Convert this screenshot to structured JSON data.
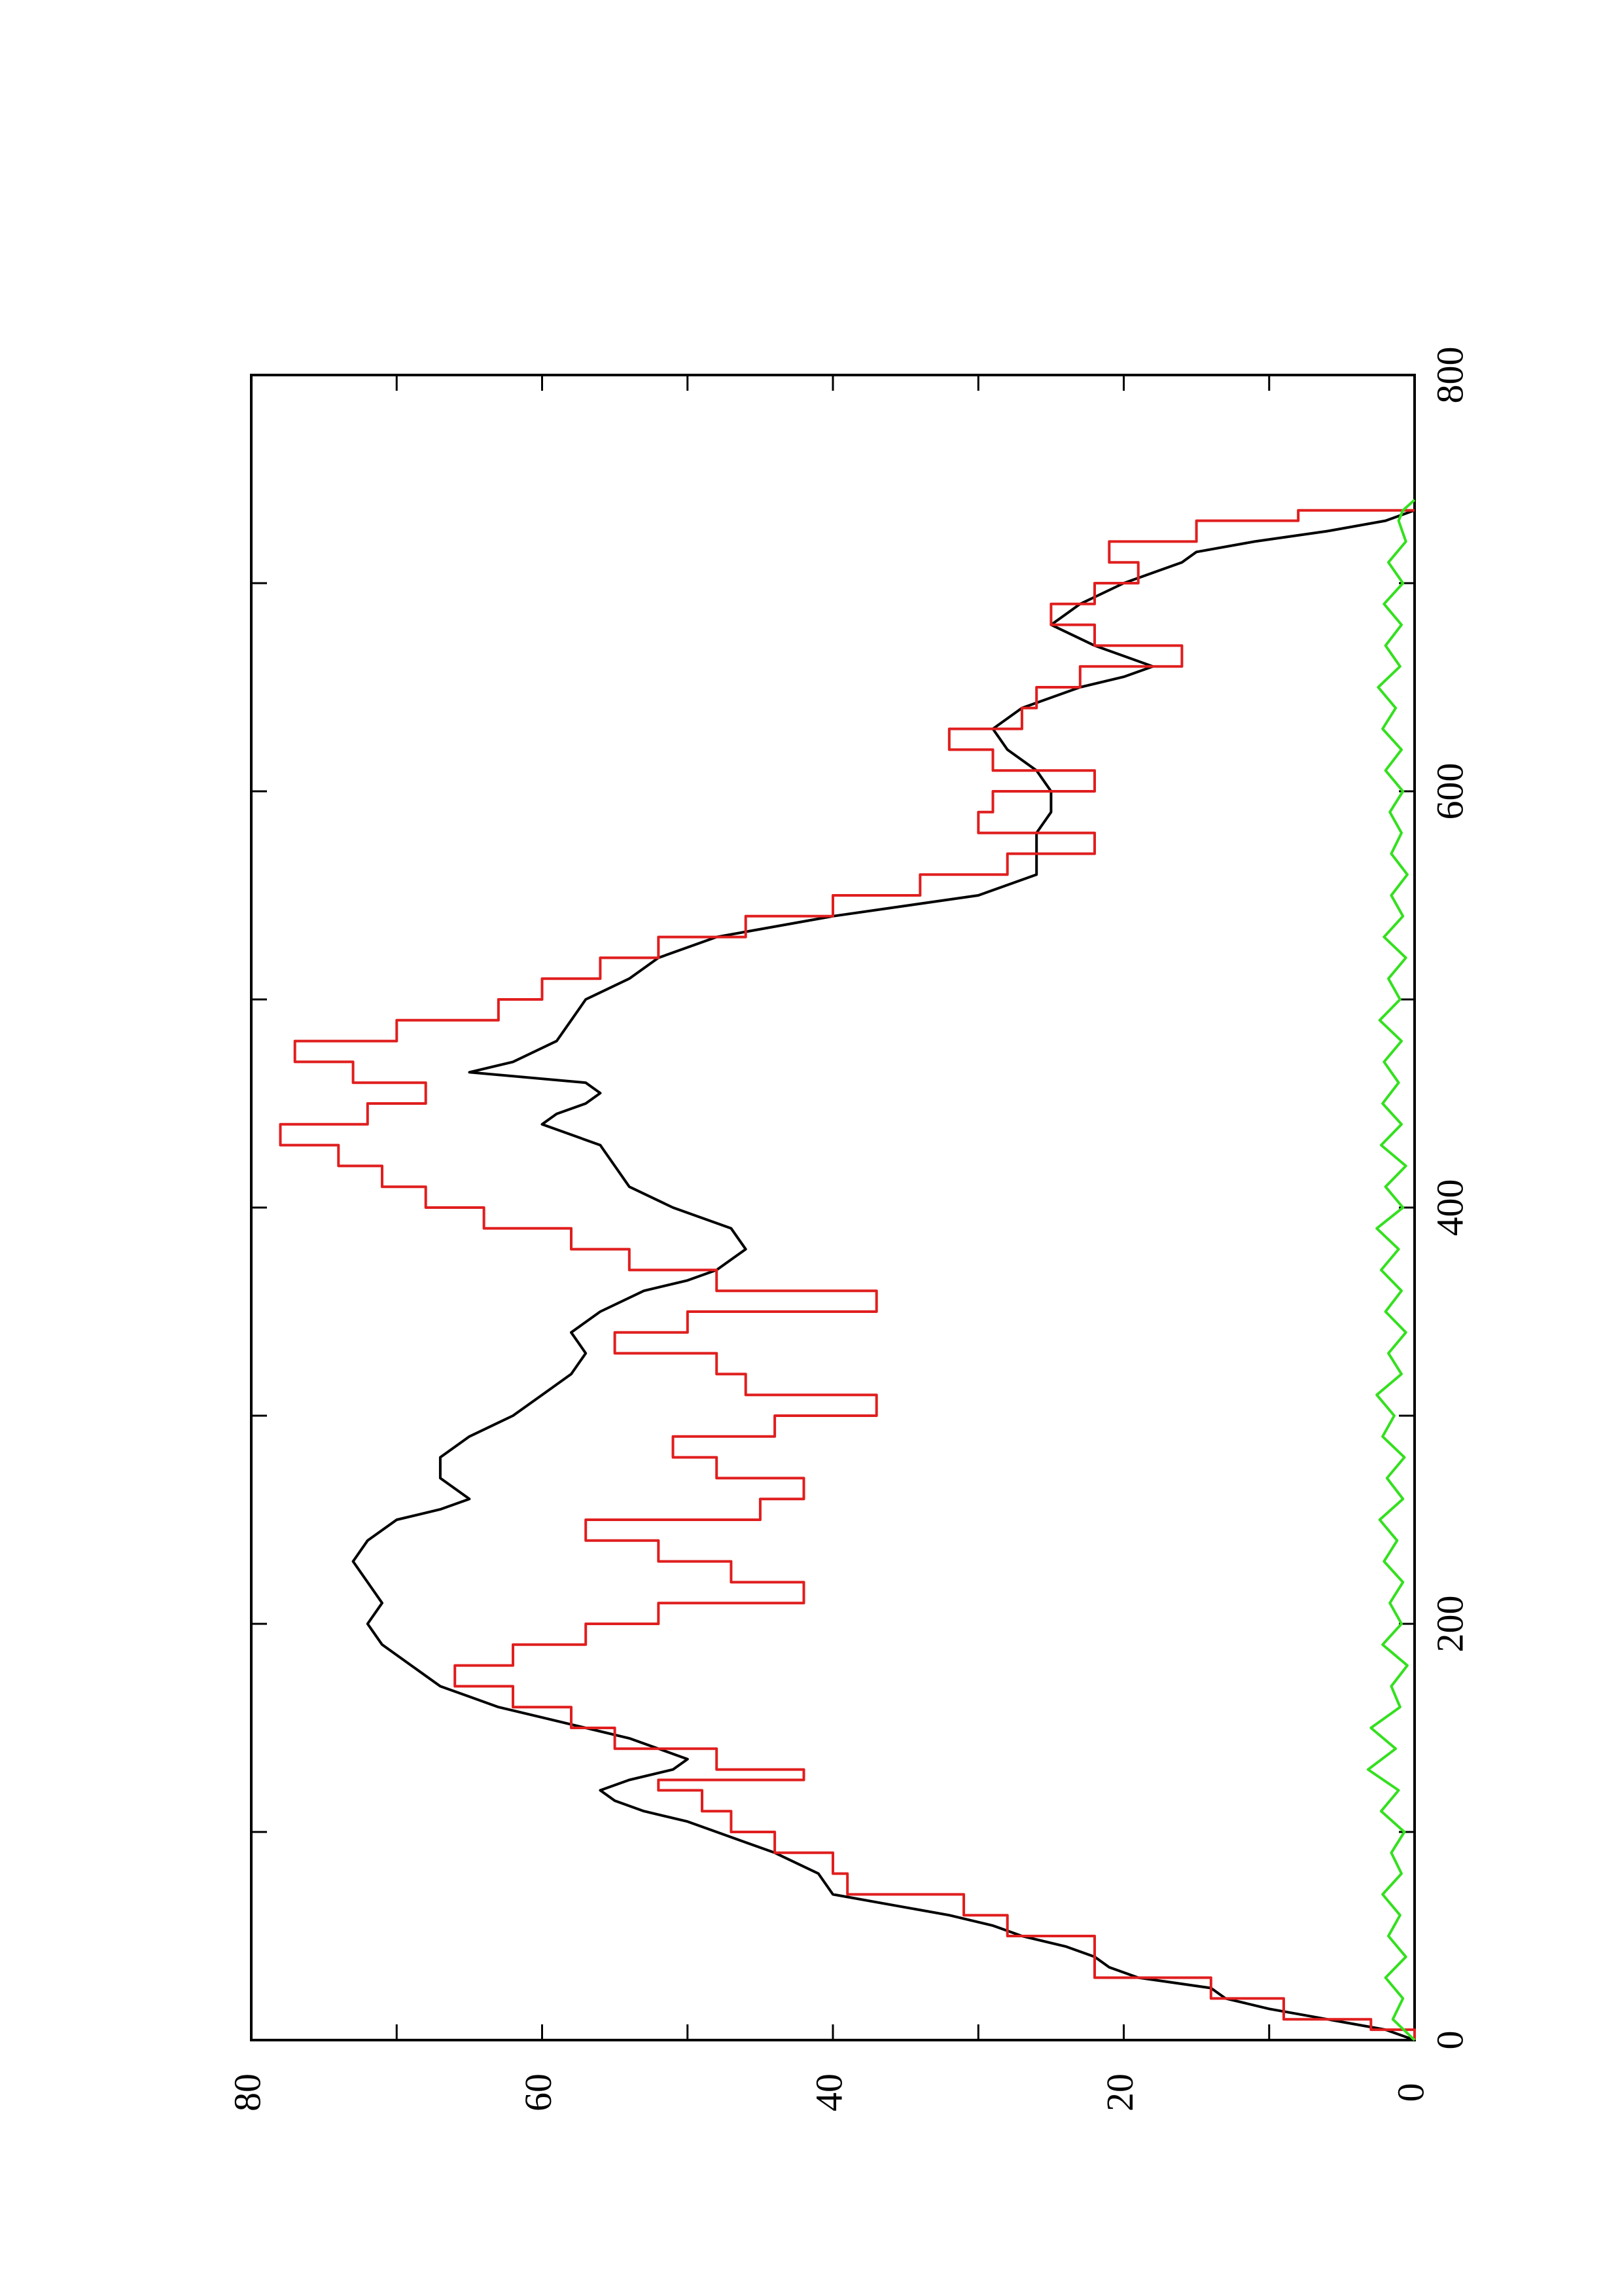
{
  "chart_data": {
    "type": "line",
    "orientation": "rotated-90-ccw",
    "title": "",
    "xlabel": "",
    "ylabel": "",
    "xlim": [
      0,
      800
    ],
    "ylim": [
      0,
      80
    ],
    "x_ticks": [
      "0",
      "200",
      "400",
      "600",
      "800"
    ],
    "y_ticks": [
      "0",
      "20",
      "40",
      "60",
      "80"
    ],
    "grid": false,
    "legend": "none",
    "series": [
      {
        "color": "#000000",
        "style": "line",
        "points": [
          [
            0,
            0
          ],
          [
            5,
            2
          ],
          [
            10,
            6
          ],
          [
            15,
            10
          ],
          [
            20,
            13
          ],
          [
            25,
            14
          ],
          [
            30,
            19
          ],
          [
            35,
            21
          ],
          [
            40,
            22
          ],
          [
            45,
            24
          ],
          [
            50,
            27
          ],
          [
            55,
            29
          ],
          [
            60,
            32
          ],
          [
            65,
            36
          ],
          [
            70,
            40
          ],
          [
            80,
            41
          ],
          [
            90,
            44
          ],
          [
            100,
            48
          ],
          [
            105,
            50
          ],
          [
            110,
            53
          ],
          [
            115,
            55
          ],
          [
            120,
            56
          ],
          [
            125,
            54
          ],
          [
            130,
            51
          ],
          [
            135,
            50
          ],
          [
            140,
            52
          ],
          [
            145,
            54
          ],
          [
            150,
            57
          ],
          [
            155,
            60
          ],
          [
            160,
            63
          ],
          [
            165,
            65
          ],
          [
            170,
            67
          ],
          [
            180,
            69
          ],
          [
            190,
            71
          ],
          [
            200,
            72
          ],
          [
            210,
            71
          ],
          [
            220,
            72
          ],
          [
            230,
            73
          ],
          [
            240,
            72
          ],
          [
            250,
            70
          ],
          [
            255,
            67
          ],
          [
            260,
            65
          ],
          [
            270,
            67
          ],
          [
            280,
            67
          ],
          [
            290,
            65
          ],
          [
            300,
            62
          ],
          [
            310,
            60
          ],
          [
            320,
            58
          ],
          [
            330,
            57
          ],
          [
            340,
            58
          ],
          [
            350,
            56
          ],
          [
            360,
            53
          ],
          [
            365,
            50
          ],
          [
            370,
            48
          ],
          [
            375,
            47
          ],
          [
            380,
            46
          ],
          [
            390,
            47
          ],
          [
            400,
            51
          ],
          [
            410,
            54
          ],
          [
            420,
            55
          ],
          [
            430,
            56
          ],
          [
            440,
            60
          ],
          [
            445,
            59
          ],
          [
            450,
            57
          ],
          [
            455,
            56
          ],
          [
            460,
            57
          ],
          [
            465,
            65
          ],
          [
            470,
            62
          ],
          [
            480,
            59
          ],
          [
            490,
            58
          ],
          [
            500,
            57
          ],
          [
            510,
            54
          ],
          [
            520,
            52
          ],
          [
            530,
            48
          ],
          [
            540,
            40
          ],
          [
            550,
            30
          ],
          [
            560,
            26
          ],
          [
            570,
            26
          ],
          [
            580,
            26
          ],
          [
            590,
            25
          ],
          [
            600,
            25
          ],
          [
            610,
            26
          ],
          [
            620,
            28
          ],
          [
            630,
            29
          ],
          [
            640,
            27
          ],
          [
            650,
            23
          ],
          [
            655,
            20
          ],
          [
            660,
            18
          ],
          [
            670,
            22
          ],
          [
            680,
            25
          ],
          [
            685,
            24
          ],
          [
            690,
            23
          ],
          [
            700,
            20
          ],
          [
            710,
            16
          ],
          [
            715,
            15
          ],
          [
            720,
            11
          ],
          [
            725,
            6
          ],
          [
            730,
            2
          ],
          [
            735,
            0
          ]
        ]
      },
      {
        "color": "#e01e1e",
        "style": "step",
        "points": [
          [
            0,
            0
          ],
          [
            5,
            3
          ],
          [
            10,
            9
          ],
          [
            20,
            14
          ],
          [
            30,
            22
          ],
          [
            40,
            22
          ],
          [
            50,
            28
          ],
          [
            60,
            31
          ],
          [
            70,
            39
          ],
          [
            80,
            40
          ],
          [
            90,
            44
          ],
          [
            100,
            47
          ],
          [
            110,
            49
          ],
          [
            120,
            52
          ],
          [
            125,
            42
          ],
          [
            130,
            48
          ],
          [
            140,
            55
          ],
          [
            150,
            58
          ],
          [
            160,
            62
          ],
          [
            170,
            66
          ],
          [
            180,
            62
          ],
          [
            190,
            57
          ],
          [
            200,
            52
          ],
          [
            210,
            42
          ],
          [
            220,
            47
          ],
          [
            230,
            52
          ],
          [
            240,
            57
          ],
          [
            250,
            45
          ],
          [
            260,
            42
          ],
          [
            270,
            48
          ],
          [
            280,
            51
          ],
          [
            290,
            44
          ],
          [
            300,
            37
          ],
          [
            310,
            46
          ],
          [
            320,
            48
          ],
          [
            330,
            55
          ],
          [
            340,
            50
          ],
          [
            350,
            37
          ],
          [
            360,
            48
          ],
          [
            370,
            54
          ],
          [
            380,
            58
          ],
          [
            390,
            64
          ],
          [
            400,
            68
          ],
          [
            410,
            71
          ],
          [
            420,
            74
          ],
          [
            430,
            78
          ],
          [
            440,
            72
          ],
          [
            450,
            68
          ],
          [
            460,
            73
          ],
          [
            470,
            77
          ],
          [
            480,
            70
          ],
          [
            490,
            63
          ],
          [
            500,
            60
          ],
          [
            510,
            56
          ],
          [
            520,
            52
          ],
          [
            530,
            46
          ],
          [
            540,
            40
          ],
          [
            550,
            34
          ],
          [
            560,
            28
          ],
          [
            570,
            22
          ],
          [
            580,
            30
          ],
          [
            590,
            29
          ],
          [
            600,
            22
          ],
          [
            610,
            29
          ],
          [
            620,
            32
          ],
          [
            630,
            27
          ],
          [
            640,
            26
          ],
          [
            650,
            23
          ],
          [
            660,
            16
          ],
          [
            670,
            22
          ],
          [
            680,
            25
          ],
          [
            690,
            22
          ],
          [
            700,
            19
          ],
          [
            710,
            21
          ],
          [
            720,
            15
          ],
          [
            730,
            8
          ],
          [
            735,
            0
          ]
        ]
      },
      {
        "color": "#33e01e",
        "style": "noise",
        "points": [
          [
            0,
            0
          ],
          [
            10,
            1.5
          ],
          [
            20,
            0.8
          ],
          [
            30,
            2.0
          ],
          [
            40,
            0.6
          ],
          [
            50,
            1.8
          ],
          [
            60,
            1.0
          ],
          [
            70,
            2.2
          ],
          [
            80,
            0.9
          ],
          [
            90,
            1.6
          ],
          [
            100,
            0.7
          ],
          [
            110,
            2.3
          ],
          [
            120,
            1.1
          ],
          [
            130,
            3.2
          ],
          [
            140,
            1.3
          ],
          [
            150,
            3.0
          ],
          [
            160,
            1.0
          ],
          [
            170,
            1.6
          ],
          [
            180,
            0.5
          ],
          [
            190,
            2.2
          ],
          [
            200,
            0.9
          ],
          [
            210,
            1.7
          ],
          [
            220,
            0.8
          ],
          [
            230,
            2.1
          ],
          [
            240,
            1.2
          ],
          [
            250,
            2.4
          ],
          [
            260,
            0.8
          ],
          [
            270,
            1.9
          ],
          [
            280,
            0.7
          ],
          [
            290,
            2.2
          ],
          [
            300,
            1.4
          ],
          [
            310,
            2.6
          ],
          [
            320,
            0.9
          ],
          [
            330,
            1.8
          ],
          [
            340,
            0.6
          ],
          [
            350,
            2.0
          ],
          [
            360,
            0.9
          ],
          [
            370,
            2.3
          ],
          [
            380,
            1.1
          ],
          [
            390,
            2.6
          ],
          [
            400,
            0.8
          ],
          [
            410,
            2.0
          ],
          [
            420,
            0.6
          ],
          [
            430,
            2.3
          ],
          [
            440,
            0.9
          ],
          [
            450,
            2.2
          ],
          [
            460,
            1.1
          ],
          [
            470,
            2.1
          ],
          [
            480,
            0.9
          ],
          [
            490,
            2.4
          ],
          [
            500,
            1.0
          ],
          [
            510,
            1.8
          ],
          [
            520,
            0.6
          ],
          [
            530,
            2.1
          ],
          [
            540,
            0.8
          ],
          [
            550,
            1.6
          ],
          [
            560,
            0.5
          ],
          [
            570,
            1.6
          ],
          [
            580,
            0.9
          ],
          [
            590,
            1.7
          ],
          [
            600,
            0.8
          ],
          [
            610,
            2.0
          ],
          [
            620,
            0.9
          ],
          [
            630,
            2.2
          ],
          [
            640,
            1.3
          ],
          [
            650,
            2.5
          ],
          [
            660,
            1.0
          ],
          [
            670,
            2.0
          ],
          [
            680,
            0.9
          ],
          [
            690,
            2.1
          ],
          [
            700,
            0.8
          ],
          [
            710,
            1.8
          ],
          [
            720,
            0.6
          ],
          [
            730,
            1.1
          ],
          [
            735,
            0.8
          ],
          [
            740,
            0
          ]
        ]
      }
    ]
  }
}
